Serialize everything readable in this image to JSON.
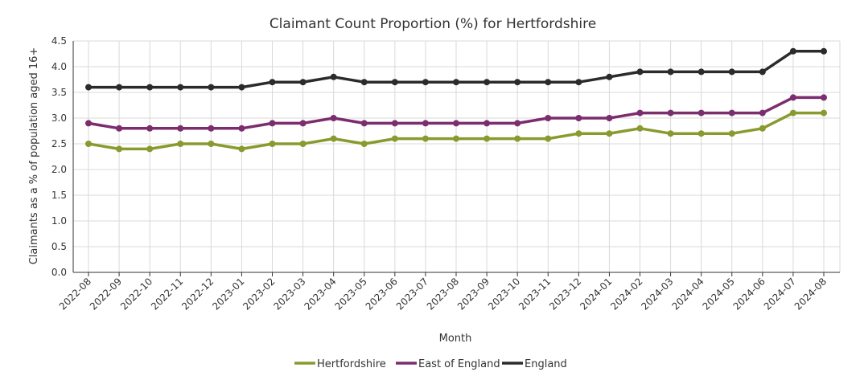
{
  "chart_data": {
    "type": "line",
    "title": "Claimant Count Proportion (%) for Hertfordshire",
    "xlabel": "Month",
    "ylabel": "Claimants as a % of population aged 16+",
    "ylim": [
      0,
      4.5
    ],
    "yticks": [
      "0.0",
      "0.5",
      "1.0",
      "1.5",
      "2.0",
      "2.5",
      "3.0",
      "3.5",
      "4.0",
      "4.5"
    ],
    "grid": true,
    "legend_position": "bottom-center",
    "categories": [
      "2022-08",
      "2022-09",
      "2022-10",
      "2022-11",
      "2022-12",
      "2023-01",
      "2023-02",
      "2023-03",
      "2023-04",
      "2023-05",
      "2023-06",
      "2023-07",
      "2023-08",
      "2023-09",
      "2023-10",
      "2023-11",
      "2023-12",
      "2024-01",
      "2024-02",
      "2024-03",
      "2024-04",
      "2024-05",
      "2024-06",
      "2024-07",
      "2024-08"
    ],
    "series": [
      {
        "name": "Hertfordshire",
        "color": "#8a9a2e",
        "values": [
          2.5,
          2.4,
          2.4,
          2.5,
          2.5,
          2.4,
          2.5,
          2.5,
          2.6,
          2.5,
          2.6,
          2.6,
          2.6,
          2.6,
          2.6,
          2.6,
          2.7,
          2.7,
          2.8,
          2.7,
          2.7,
          2.7,
          2.8,
          3.1,
          3.1
        ]
      },
      {
        "name": "East of England",
        "color": "#7b2d6e",
        "values": [
          2.9,
          2.8,
          2.8,
          2.8,
          2.8,
          2.8,
          2.9,
          2.9,
          3.0,
          2.9,
          2.9,
          2.9,
          2.9,
          2.9,
          2.9,
          3.0,
          3.0,
          3.0,
          3.1,
          3.1,
          3.1,
          3.1,
          3.1,
          3.4,
          3.4
        ]
      },
      {
        "name": "England",
        "color": "#2b2b2b",
        "values": [
          3.6,
          3.6,
          3.6,
          3.6,
          3.6,
          3.6,
          3.7,
          3.7,
          3.8,
          3.7,
          3.7,
          3.7,
          3.7,
          3.7,
          3.7,
          3.7,
          3.7,
          3.8,
          3.9,
          3.9,
          3.9,
          3.9,
          3.9,
          4.3,
          4.3
        ]
      }
    ]
  }
}
